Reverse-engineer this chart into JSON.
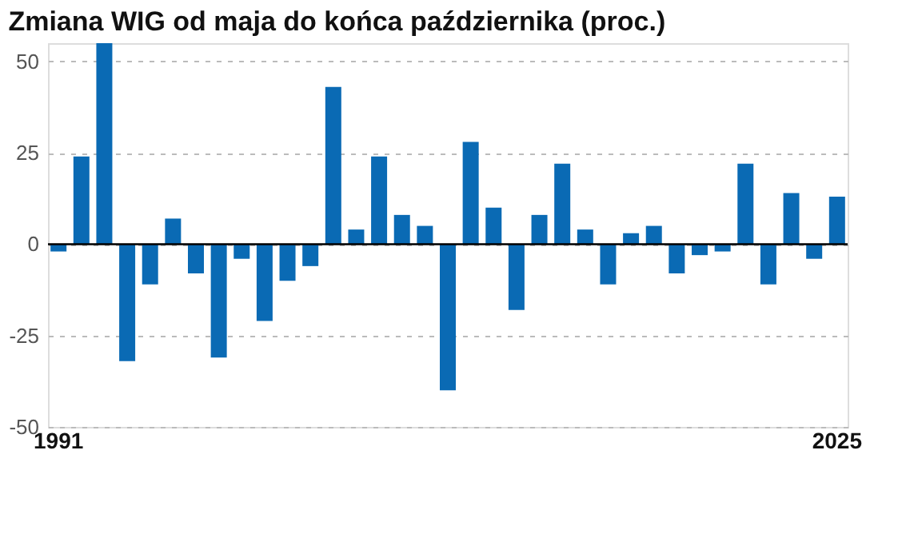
{
  "chart_data": {
    "type": "bar",
    "title": "Zmiana WIG od maja do końca października (proc.)",
    "categories": [
      "1991",
      null,
      null,
      null,
      null,
      null,
      null,
      null,
      null,
      null,
      null,
      null,
      null,
      null,
      null,
      null,
      null,
      null,
      null,
      null,
      null,
      null,
      null,
      null,
      null,
      null,
      null,
      null,
      null,
      null,
      null,
      null,
      null,
      null,
      "2025"
    ],
    "series": [
      {
        "color": "#0a6ab4",
        "values": [
          -2,
          24,
          55,
          -32,
          -11,
          7,
          -8,
          -31,
          -4,
          -21,
          -10,
          -6,
          43,
          4,
          24,
          8,
          5,
          -40,
          28,
          10,
          -18,
          8,
          22,
          4,
          -11,
          3,
          5,
          -8,
          -3,
          -2,
          22,
          -11,
          14,
          -4,
          13
        ]
      }
    ],
    "ylim": [
      -50,
      55
    ],
    "yticks": [
      -50,
      -25,
      0,
      25,
      50
    ],
    "grid": "y",
    "ref_lines": [
      {
        "axis": "y",
        "value": 0,
        "color": "#000000"
      }
    ]
  }
}
